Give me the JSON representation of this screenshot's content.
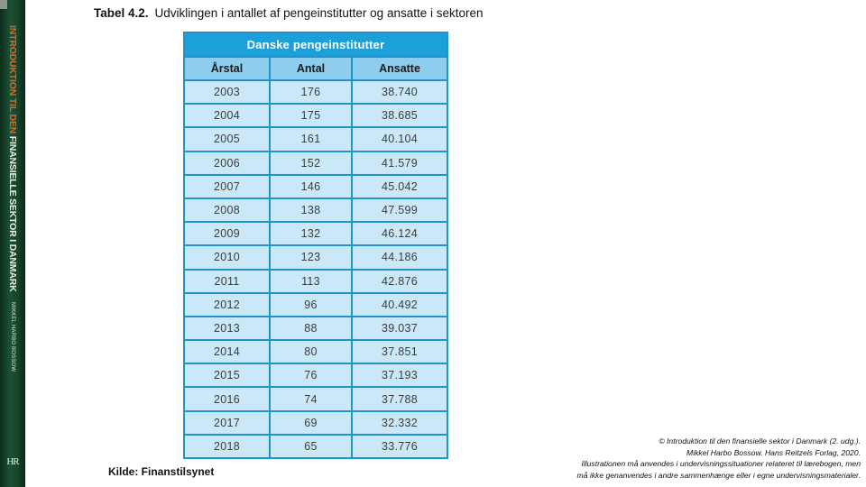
{
  "spine": {
    "title_orange": "INTRODUKTION TIL DEN",
    "title_white": " FINANSIELLE SEKTOR I DANMARK",
    "author": "MIKKEL HARBO BOSSOW",
    "logo": "HR"
  },
  "slide": {
    "title_label": "Tabel 4.2.",
    "title_text": "Udviklingen i antallet af pengeinstitutter og ansatte i sektoren",
    "source": "Kilde: Finanstilsynet"
  },
  "table": {
    "title": "Danske pengeinstitutter",
    "columns": [
      "Årstal",
      "Antal",
      "Ansatte"
    ],
    "rows": [
      [
        "2003",
        "176",
        "38.740"
      ],
      [
        "2004",
        "175",
        "38.685"
      ],
      [
        "2005",
        "161",
        "40.104"
      ],
      [
        "2006",
        "152",
        "41.579"
      ],
      [
        "2007",
        "146",
        "45.042"
      ],
      [
        "2008",
        "138",
        "47.599"
      ],
      [
        "2009",
        "132",
        "46.124"
      ],
      [
        "2010",
        "123",
        "44.186"
      ],
      [
        "2011",
        "113",
        "42.876"
      ],
      [
        "2012",
        "96",
        "40.492"
      ],
      [
        "2013",
        "88",
        "39.037"
      ],
      [
        "2014",
        "80",
        "37.851"
      ],
      [
        "2015",
        "76",
        "37.193"
      ],
      [
        "2016",
        "74",
        "37.788"
      ],
      [
        "2017",
        "69",
        "32.332"
      ],
      [
        "2018",
        "65",
        "33.776"
      ]
    ]
  },
  "footer": {
    "lines": [
      "© Introduktion til den finansielle sektor i Danmark (2. udg.).",
      "Mikkel Harbo Bossow. Hans Reitzels Forlag, 2020.",
      "Illustrationen må anvendes i undervisningssituationer relateret til lærebogen, men",
      "må ikke genanvendes i andre sammenhænge eller i egne undervisningsmaterialer."
    ]
  },
  "colors": {
    "table_header_blue": "#1d9fd9",
    "table_border_blue": "#1e94cb",
    "table_subheader_blue": "#8ecdee",
    "table_row_blue": "#cbe8f8",
    "spine_green": "#174329",
    "spine_orange": "#d8682a"
  }
}
